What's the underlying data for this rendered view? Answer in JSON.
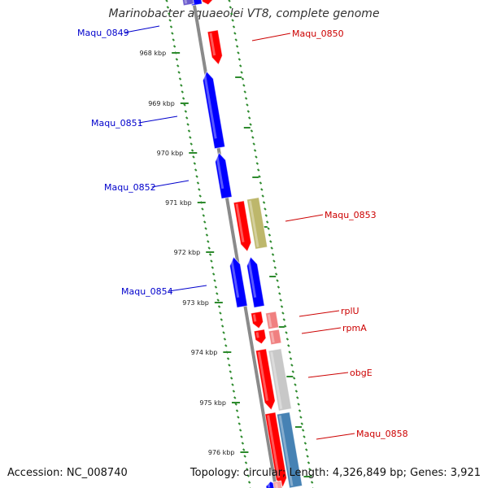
{
  "title": "Marinobacter aquaeolei VT8, complete genome",
  "accession": "Accession: NC_008740",
  "topology": "Topology: circular; Length: 4,326,849 bp; Genes: 3,921",
  "colors": {
    "backbone": "#8a8a8a",
    "tick": "#2e8b2e",
    "forward_gene": "#ff0000",
    "reverse_gene": "#0000ff",
    "forward_label": "#cc0000",
    "reverse_label": "#0000cc",
    "tick_label": "#222222",
    "cog_olive": "#bdb76b",
    "cog_pink": "#f08080",
    "cog_grey": "#c8c8c8",
    "cog_steel": "#4682b4"
  },
  "ticks": [
    "968 kbp",
    "969 kbp",
    "970 kbp",
    "971 kbp",
    "972 kbp",
    "973 kbp",
    "974 kbp",
    "975 kbp",
    "976 kbp"
  ],
  "forward_labels": [
    "Maqu_0850",
    "Maqu_0853",
    "rplU",
    "rpmA",
    "obgE",
    "Maqu_0858"
  ],
  "reverse_labels": [
    "Maqu_0849",
    "Maqu_0851",
    "Maqu_0852",
    "Maqu_0854"
  ]
}
